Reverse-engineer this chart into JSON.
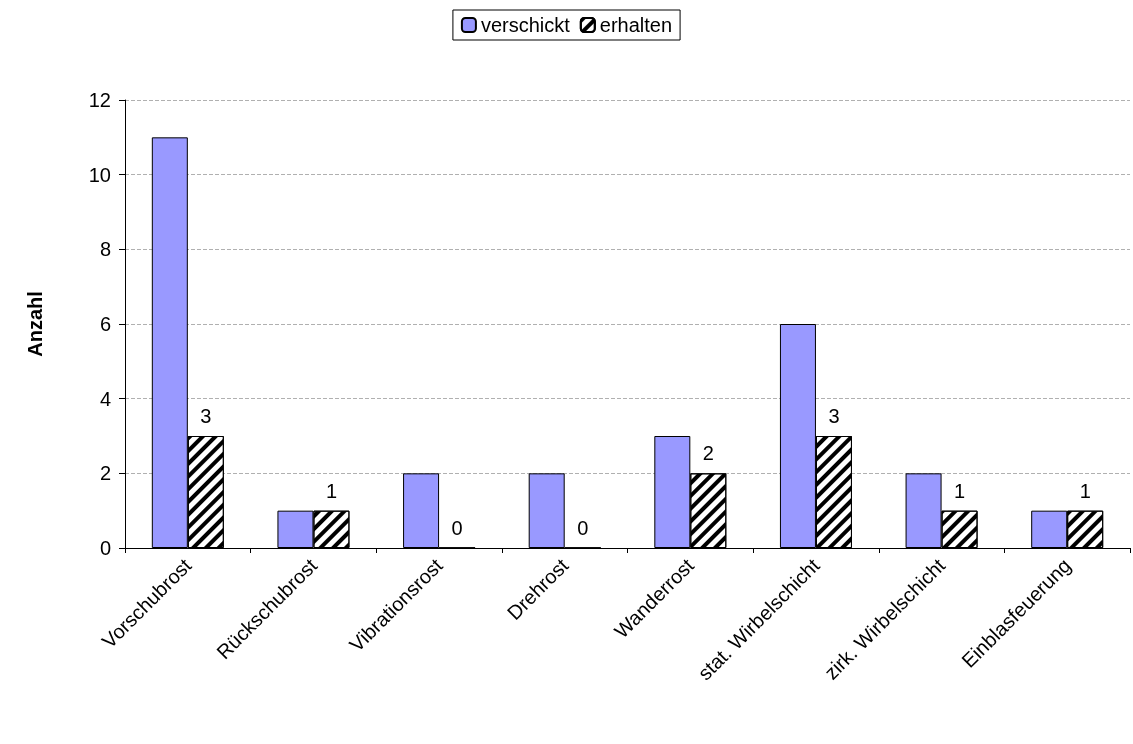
{
  "chart_data": {
    "type": "bar",
    "ylabel": "Anzahl",
    "categories": [
      "Vorschubrost",
      "Rückschubrost",
      "Vibrationsrost",
      "Drehrost",
      "Wanderrost",
      "stat. Wirbelschicht",
      "zirk. Wirbelschicht",
      "Einblasfeuerung"
    ],
    "series": [
      {
        "name": "verschickt",
        "color": "#9999ff",
        "values": [
          11,
          1,
          2,
          2,
          3,
          6,
          2,
          1
        ]
      },
      {
        "name": "erhalten",
        "color": "#000000",
        "values": [
          3,
          1,
          0,
          0,
          2,
          3,
          1,
          1
        ],
        "value_labels": [
          "3",
          "1",
          "0",
          "0",
          "2",
          "3",
          "1",
          "1"
        ]
      }
    ],
    "ylim": [
      0,
      12
    ],
    "yticks": [
      0,
      2,
      4,
      6,
      8,
      10,
      12
    ],
    "grid": "y",
    "legend": "top"
  }
}
